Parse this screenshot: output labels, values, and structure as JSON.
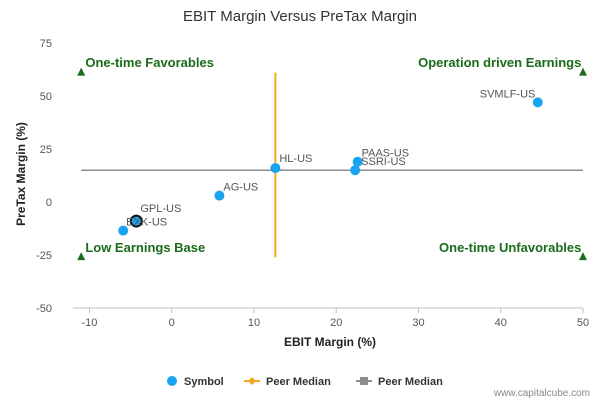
{
  "chart_data": {
    "type": "scatter",
    "title": "EBIT Margin Versus PreTax Margin",
    "xlabel": "EBIT Margin (%)",
    "ylabel": "PreTax Margin (%)",
    "xlim": [
      -12,
      50
    ],
    "ylim": [
      -50,
      75
    ],
    "xticks": [
      -10,
      0,
      10,
      20,
      30,
      40,
      50
    ],
    "yticks": [
      -50,
      -25,
      0,
      25,
      50,
      75
    ],
    "points": [
      {
        "label": "SVMLF-US",
        "x": 44.5,
        "y": 47
      },
      {
        "label": "PAAS-US",
        "x": 22.6,
        "y": 19
      },
      {
        "label": "SSRI-US",
        "x": 22.3,
        "y": 15
      },
      {
        "label": "HL-US",
        "x": 12.6,
        "y": 16
      },
      {
        "label": "AG-US",
        "x": 5.8,
        "y": 3
      },
      {
        "label": "GPL-US",
        "x": -4.3,
        "y": -9,
        "highlight": true
      },
      {
        "label": "EXK-US",
        "x": -5.9,
        "y": -13.5
      }
    ],
    "peer_median_x": 12.6,
    "peer_median_y": 15,
    "quadrants": {
      "top_left": "One-time Favorables",
      "top_right": "Operation driven Earnings",
      "bottom_left": "Low Earnings Base",
      "bottom_right": "One-time Unfavorables"
    },
    "legend": [
      {
        "label": "Symbol",
        "color": "#1aa3ef"
      },
      {
        "label": "Peer Median",
        "color": "#f5a623"
      },
      {
        "label": "Peer Median",
        "color": "#8c8c8c"
      }
    ],
    "credit": "www.capitalcube.com",
    "colors": {
      "point": "#1aa3ef",
      "median_x": "#f5a623",
      "median_y": "#8c8c8c",
      "quadrant": "#1a6b1a"
    }
  }
}
